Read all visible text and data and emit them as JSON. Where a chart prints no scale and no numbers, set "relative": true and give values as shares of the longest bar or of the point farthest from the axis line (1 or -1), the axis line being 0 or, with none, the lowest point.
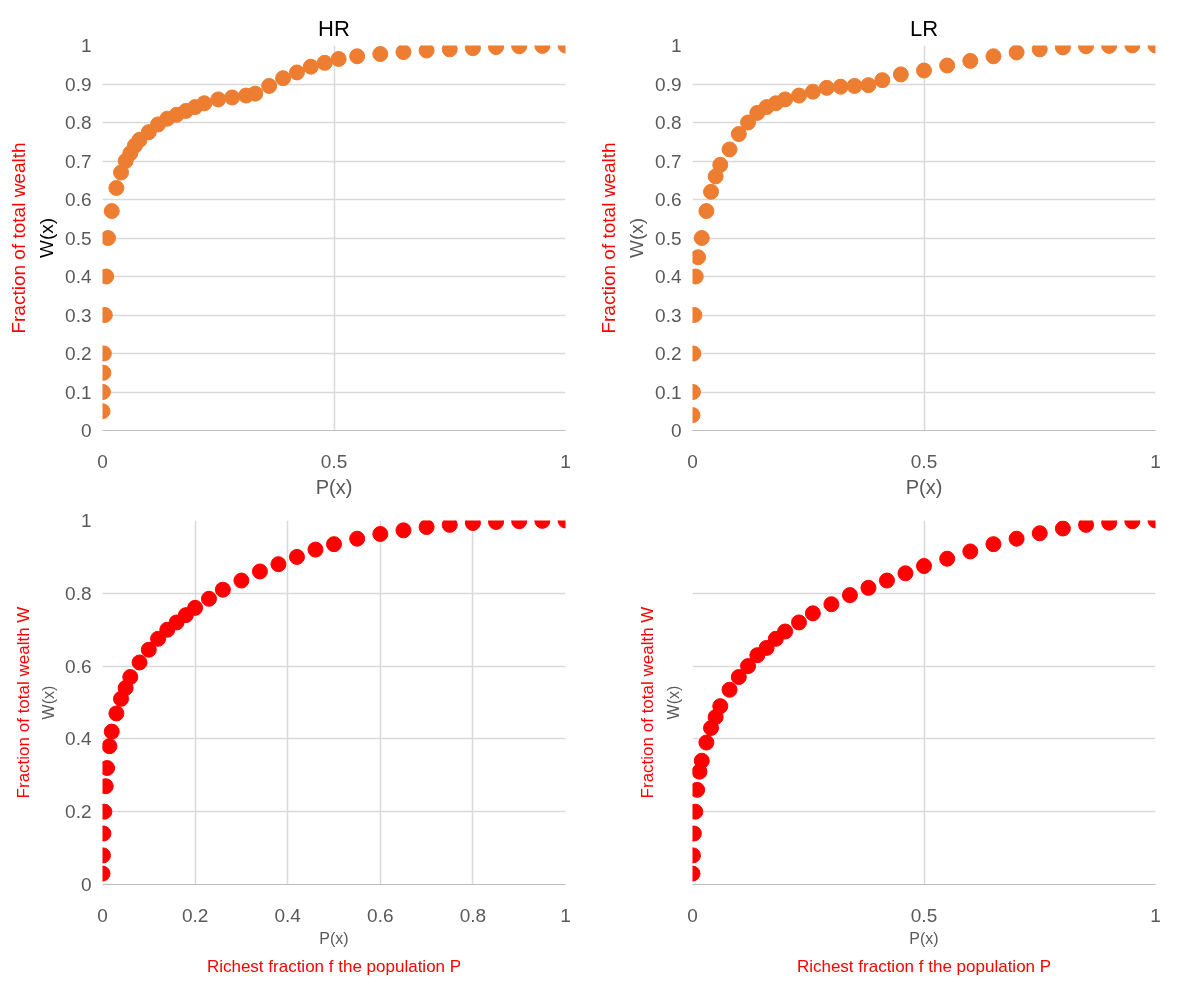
{
  "chart_data": [
    {
      "type": "scatter",
      "title": "HR",
      "xlabel": "P(x)",
      "ylabel": "W(x)",
      "annotations": [
        "Fraction of total wealth"
      ],
      "marker": "circle",
      "grid": true,
      "xlim": [
        0,
        1
      ],
      "ylim": [
        0,
        1
      ],
      "xticks": [
        0,
        0.5,
        1
      ],
      "yticks": [
        0,
        0.1,
        0.2,
        0.3,
        0.4,
        0.5,
        0.6,
        0.7,
        0.8,
        0.9,
        1
      ],
      "x": [
        0,
        0.001,
        0.002,
        0.003,
        0.005,
        0.008,
        0.012,
        0.02,
        0.03,
        0.04,
        0.05,
        0.06,
        0.07,
        0.08,
        0.1,
        0.12,
        0.14,
        0.16,
        0.18,
        0.2,
        0.22,
        0.25,
        0.28,
        0.31,
        0.33,
        0.36,
        0.39,
        0.42,
        0.45,
        0.48,
        0.51,
        0.55,
        0.6,
        0.65,
        0.7,
        0.75,
        0.8,
        0.85,
        0.9,
        0.95,
        1
      ],
      "series": [
        {
          "color": "#ed7d31",
          "values": [
            0.05,
            0.1,
            0.15,
            0.2,
            0.3,
            0.4,
            0.5,
            0.57,
            0.63,
            0.67,
            0.7,
            0.72,
            0.74,
            0.755,
            0.775,
            0.795,
            0.81,
            0.82,
            0.83,
            0.84,
            0.85,
            0.86,
            0.865,
            0.87,
            0.875,
            0.895,
            0.915,
            0.93,
            0.945,
            0.955,
            0.965,
            0.972,
            0.978,
            0.983,
            0.987,
            0.99,
            0.993,
            0.996,
            0.998,
            0.999,
            1
          ]
        }
      ]
    },
    {
      "type": "scatter",
      "title": "LR",
      "xlabel": "P(x)",
      "ylabel": "W(x)",
      "annotations": [
        "Fraction of total wealth"
      ],
      "marker": "circle",
      "grid": true,
      "xlim": [
        0,
        1
      ],
      "ylim": [
        0,
        1
      ],
      "xticks": [
        0,
        0.5,
        1
      ],
      "yticks": [
        0,
        0.1,
        0.2,
        0.3,
        0.4,
        0.5,
        0.6,
        0.7,
        0.8,
        0.9,
        1
      ],
      "x": [
        0,
        0.001,
        0.002,
        0.004,
        0.007,
        0.012,
        0.02,
        0.03,
        0.04,
        0.05,
        0.06,
        0.08,
        0.1,
        0.12,
        0.14,
        0.16,
        0.18,
        0.2,
        0.23,
        0.26,
        0.29,
        0.32,
        0.35,
        0.38,
        0.41,
        0.45,
        0.5,
        0.55,
        0.6,
        0.65,
        0.7,
        0.75,
        0.8,
        0.85,
        0.9,
        0.95,
        1
      ],
      "series": [
        {
          "color": "#ed7d31",
          "values": [
            0.04,
            0.1,
            0.2,
            0.3,
            0.4,
            0.45,
            0.5,
            0.57,
            0.62,
            0.66,
            0.69,
            0.73,
            0.77,
            0.8,
            0.825,
            0.84,
            0.85,
            0.86,
            0.87,
            0.88,
            0.89,
            0.893,
            0.895,
            0.897,
            0.91,
            0.925,
            0.935,
            0.948,
            0.96,
            0.972,
            0.982,
            0.99,
            0.995,
            0.998,
            0.999,
            1,
            1
          ]
        }
      ]
    },
    {
      "type": "scatter",
      "xlabel": "P(x)",
      "ylabel": "W(x)",
      "annotations": [
        "Fraction of total wealth W",
        "Richest fraction f the population P"
      ],
      "marker": "circle",
      "grid": true,
      "xlim": [
        0,
        1
      ],
      "ylim": [
        0,
        1
      ],
      "xticks": [
        0,
        0.2,
        0.4,
        0.6,
        0.8,
        1
      ],
      "yticks": [
        0,
        0.2,
        0.4,
        0.6,
        0.8,
        1
      ],
      "x": [
        0,
        0.001,
        0.002,
        0.004,
        0.007,
        0.01,
        0.015,
        0.02,
        0.03,
        0.04,
        0.05,
        0.06,
        0.08,
        0.1,
        0.12,
        0.14,
        0.16,
        0.18,
        0.2,
        0.23,
        0.26,
        0.3,
        0.34,
        0.38,
        0.42,
        0.46,
        0.5,
        0.55,
        0.6,
        0.65,
        0.7,
        0.75,
        0.8,
        0.85,
        0.9,
        0.95,
        1
      ],
      "series": [
        {
          "color": "#ff0000",
          "values": [
            0.03,
            0.08,
            0.14,
            0.2,
            0.27,
            0.32,
            0.38,
            0.42,
            0.47,
            0.51,
            0.54,
            0.57,
            0.61,
            0.645,
            0.675,
            0.7,
            0.72,
            0.74,
            0.76,
            0.785,
            0.81,
            0.835,
            0.86,
            0.88,
            0.9,
            0.92,
            0.935,
            0.95,
            0.963,
            0.973,
            0.982,
            0.988,
            0.993,
            0.996,
            0.998,
            0.999,
            1
          ]
        }
      ]
    },
    {
      "type": "scatter",
      "xlabel": "P(x)",
      "ylabel": "W(x)",
      "annotations": [
        "Fraction of total wealth W",
        "Richest fraction f the population P"
      ],
      "marker": "circle",
      "grid": true,
      "relative": true,
      "tick_labels": "x",
      "xlim": [
        0,
        1
      ],
      "xticks": [
        0,
        0.5,
        1
      ],
      "x": [
        0,
        0.001,
        0.003,
        0.006,
        0.01,
        0.015,
        0.02,
        0.03,
        0.04,
        0.05,
        0.06,
        0.08,
        0.1,
        0.12,
        0.14,
        0.16,
        0.18,
        0.2,
        0.23,
        0.26,
        0.3,
        0.34,
        0.38,
        0.42,
        0.46,
        0.5,
        0.55,
        0.6,
        0.65,
        0.7,
        0.75,
        0.8,
        0.85,
        0.9,
        0.95,
        1
      ],
      "series": [
        {
          "color": "#ff0000",
          "values": [
            0.03,
            0.08,
            0.14,
            0.2,
            0.26,
            0.31,
            0.34,
            0.39,
            0.43,
            0.46,
            0.49,
            0.535,
            0.57,
            0.6,
            0.63,
            0.65,
            0.675,
            0.695,
            0.72,
            0.745,
            0.77,
            0.795,
            0.815,
            0.835,
            0.855,
            0.875,
            0.895,
            0.915,
            0.935,
            0.95,
            0.965,
            0.978,
            0.988,
            0.994,
            0.998,
            1
          ]
        }
      ]
    }
  ]
}
